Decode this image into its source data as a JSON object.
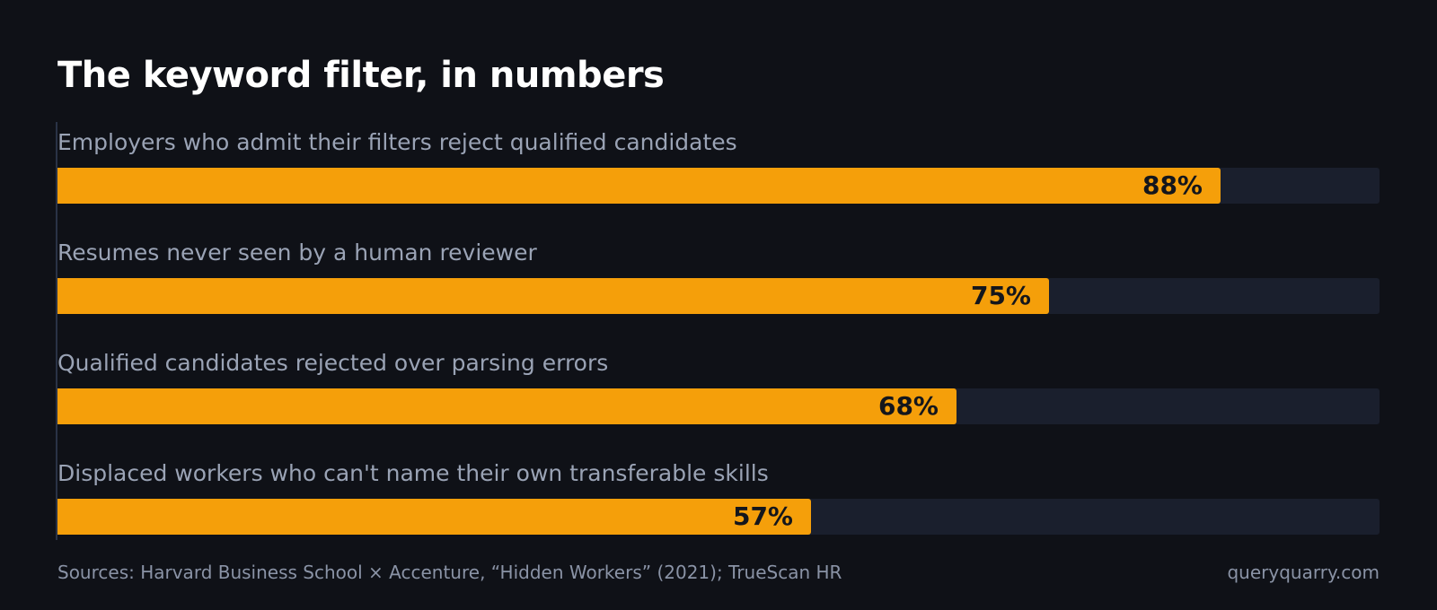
{
  "colors": {
    "background": "#0f1117",
    "bar_fill": "#f59f0a",
    "bar_track": "#1a1f2d",
    "title": "#ffffff",
    "label": "#9aa3b5",
    "value_text": "#14161c",
    "footer": "#8a93a6"
  },
  "chart_data": {
    "type": "bar",
    "orientation": "horizontal",
    "title": "The keyword filter, in numbers",
    "xlim": [
      0,
      100
    ],
    "unit": "%",
    "grid": false,
    "categories": [
      "Employers who admit their filters reject qualified candidates",
      "Resumes never seen by a human reviewer",
      "Qualified candidates rejected over parsing errors",
      "Displaced workers who can't name their own transferable skills"
    ],
    "values": [
      88,
      75,
      68,
      57
    ],
    "value_labels": [
      "88%",
      "75%",
      "68%",
      "57%"
    ]
  },
  "footer": {
    "sources": "Sources: Harvard Business School × Accenture, “Hidden Workers” (2021); TrueScan HR",
    "site": "queryquarry.com"
  }
}
